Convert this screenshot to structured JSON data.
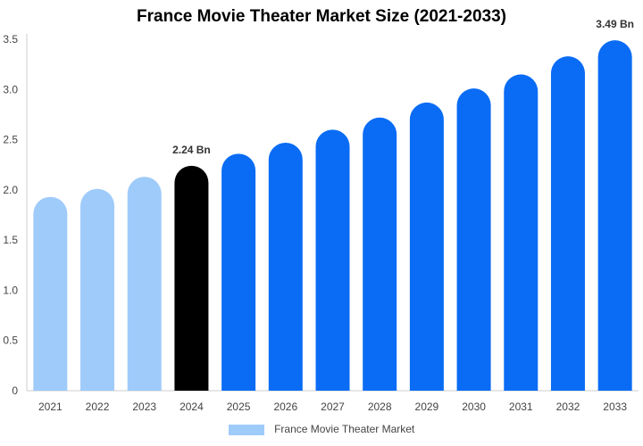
{
  "chart_data": {
    "type": "bar",
    "title": "France Movie Theater Market Size (2021-2033)",
    "xlabel": "",
    "ylabel": "",
    "categories": [
      "2021",
      "2022",
      "2023",
      "2024",
      "2025",
      "2026",
      "2027",
      "2028",
      "2029",
      "2030",
      "2031",
      "2032",
      "2033"
    ],
    "series": [
      {
        "name": "France Movie Theater Market",
        "values": [
          1.93,
          2.01,
          2.13,
          2.24,
          2.36,
          2.47,
          2.6,
          2.72,
          2.87,
          3.01,
          3.15,
          3.33,
          3.49
        ]
      }
    ],
    "data_labels": [
      {
        "category": "2024",
        "text": "2.24 Bn"
      },
      {
        "category": "2033",
        "text": "3.49 Bn"
      }
    ],
    "ylim": [
      0,
      3.5
    ],
    "yticks": [
      "0",
      "0.5",
      "1.0",
      "1.5",
      "2.0",
      "2.5",
      "3.0",
      "3.5"
    ],
    "grid": false,
    "legend_position": "bottom",
    "colors": {
      "historical": "#9ecbfa",
      "current": "#000000",
      "forecast": "#0a6cf5",
      "legend_swatch": "#9ecbfa",
      "axis": "#cccccc"
    },
    "bar_roles": [
      "historical",
      "historical",
      "historical",
      "current",
      "forecast",
      "forecast",
      "forecast",
      "forecast",
      "forecast",
      "forecast",
      "forecast",
      "forecast",
      "forecast"
    ]
  }
}
